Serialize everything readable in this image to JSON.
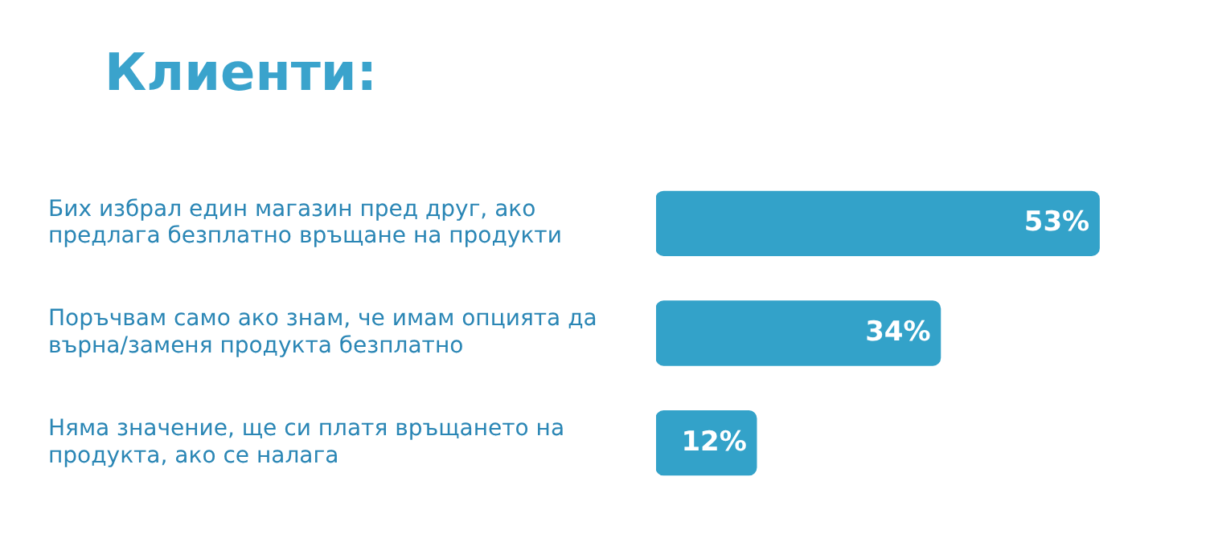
{
  "chart_data": {
    "type": "bar",
    "orientation": "horizontal",
    "title": "Клиенти:",
    "categories": [
      "Бих избрал един магазин пред друг, ако предлага безплатно връщане на продукти",
      "Поръчвам само ако знам, че имам опцията да върна/заменя продукта безплатно",
      "Няма значение, ще си платя връщането на продукта, ако се налага"
    ],
    "values": [
      53,
      34,
      12
    ],
    "color": "#33a2c9",
    "value_labels": [
      "53%",
      "34%",
      "12%"
    ],
    "legend": false,
    "tick_labels": "y"
  }
}
